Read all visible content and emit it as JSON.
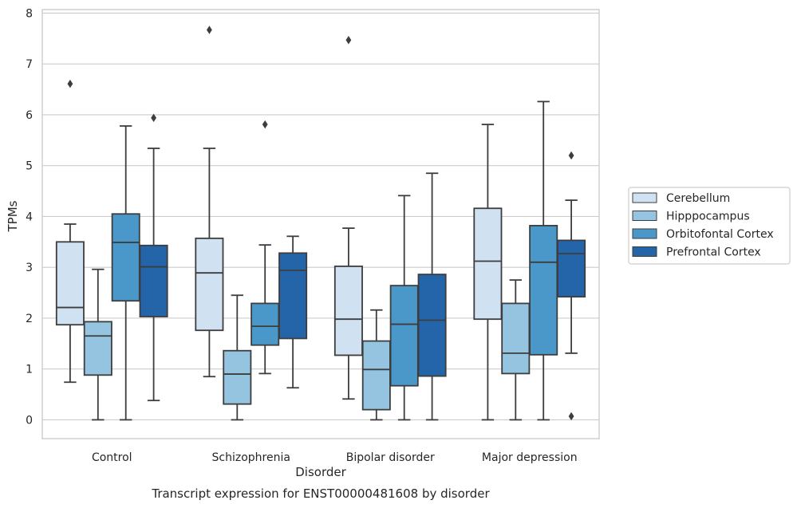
{
  "caption": "Transcript expression for ENST00000481608 by disorder",
  "chart_data": {
    "type": "box",
    "xlabel": "Disorder",
    "ylabel": "TPMs",
    "ylim": [
      -0.37,
      8.07
    ],
    "yticks": [
      "0",
      "1",
      "2",
      "3",
      "4",
      "5",
      "6",
      "7",
      "8"
    ],
    "categories": [
      "Control",
      "Schizophrenia",
      "Bipolar disorder",
      "Major depression"
    ],
    "grid": "horizontal",
    "legend_position": "right",
    "series": [
      {
        "name": "Cerebellum",
        "color": "#d0e1f2",
        "boxes": [
          {
            "whisker_low": 0.74,
            "q1": 1.87,
            "median": 2.21,
            "q3": 3.5,
            "whisker_high": 3.85,
            "outliers": [
              6.61
            ]
          },
          {
            "whisker_low": 0.85,
            "q1": 1.76,
            "median": 2.89,
            "q3": 3.57,
            "whisker_high": 5.34,
            "outliers": [
              7.67
            ]
          },
          {
            "whisker_low": 0.41,
            "q1": 1.27,
            "median": 1.98,
            "q3": 3.02,
            "whisker_high": 3.77,
            "outliers": [
              7.47
            ]
          },
          {
            "whisker_low": 0.0,
            "q1": 1.98,
            "median": 3.12,
            "q3": 4.16,
            "whisker_high": 5.81,
            "outliers": []
          }
        ]
      },
      {
        "name": "Hipppocampus",
        "color": "#94c4df",
        "boxes": [
          {
            "whisker_low": 0.0,
            "q1": 0.88,
            "median": 1.65,
            "q3": 1.93,
            "whisker_high": 2.96,
            "outliers": []
          },
          {
            "whisker_low": 0.0,
            "q1": 0.31,
            "median": 0.9,
            "q3": 1.36,
            "whisker_high": 2.45,
            "outliers": []
          },
          {
            "whisker_low": 0.0,
            "q1": 0.2,
            "median": 0.99,
            "q3": 1.55,
            "whisker_high": 2.16,
            "outliers": []
          },
          {
            "whisker_low": 0.0,
            "q1": 0.91,
            "median": 1.31,
            "q3": 2.29,
            "whisker_high": 2.75,
            "outliers": []
          }
        ]
      },
      {
        "name": "Orbitofontal Cortex",
        "color": "#4a98c9",
        "boxes": [
          {
            "whisker_low": 0.0,
            "q1": 2.34,
            "median": 3.49,
            "q3": 4.05,
            "whisker_high": 5.78,
            "outliers": []
          },
          {
            "whisker_low": 0.91,
            "q1": 1.47,
            "median": 1.84,
            "q3": 2.29,
            "whisker_high": 3.44,
            "outliers": [
              5.81
            ]
          },
          {
            "whisker_low": 0.0,
            "q1": 0.67,
            "median": 1.88,
            "q3": 2.64,
            "whisker_high": 4.41,
            "outliers": []
          },
          {
            "whisker_low": 0.0,
            "q1": 1.28,
            "median": 3.1,
            "q3": 3.82,
            "whisker_high": 6.26,
            "outliers": []
          }
        ]
      },
      {
        "name": "Prefrontal Cortex",
        "color": "#2464a8",
        "boxes": [
          {
            "whisker_low": 0.38,
            "q1": 2.03,
            "median": 3.01,
            "q3": 3.43,
            "whisker_high": 5.34,
            "outliers": [
              5.94
            ]
          },
          {
            "whisker_low": 0.63,
            "q1": 1.6,
            "median": 2.94,
            "q3": 3.28,
            "whisker_high": 3.61,
            "outliers": []
          },
          {
            "whisker_low": 0.0,
            "q1": 0.86,
            "median": 1.96,
            "q3": 2.86,
            "whisker_high": 4.85,
            "outliers": []
          },
          {
            "whisker_low": 1.31,
            "q1": 2.42,
            "median": 3.27,
            "q3": 3.53,
            "whisker_high": 4.32,
            "outliers": [
              5.2,
              0.07
            ]
          }
        ]
      }
    ]
  }
}
